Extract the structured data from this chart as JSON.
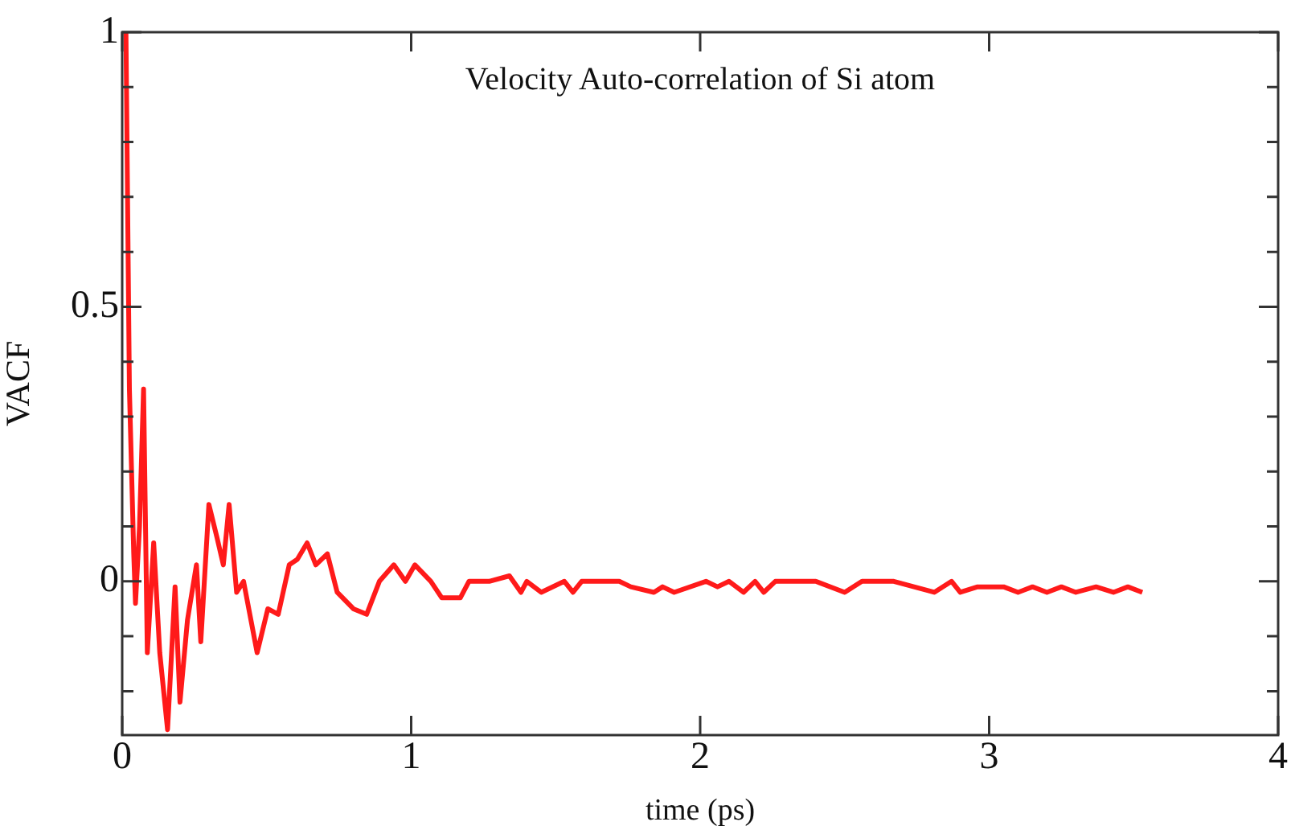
{
  "chart_data": {
    "type": "line",
    "title": "Velocity Auto-correlation of Si atom",
    "xlabel": "time (ps)",
    "ylabel": "VACF",
    "x": [
      0.005,
      0.013,
      0.025,
      0.04,
      0.046,
      0.06,
      0.074,
      0.087,
      0.109,
      0.13,
      0.157,
      0.183,
      0.2,
      0.226,
      0.257,
      0.272,
      0.3,
      0.328,
      0.35,
      0.37,
      0.396,
      0.42,
      0.467,
      0.504,
      0.54,
      0.578,
      0.606,
      0.64,
      0.67,
      0.71,
      0.744,
      0.8,
      0.846,
      0.89,
      0.94,
      0.98,
      1.013,
      1.068,
      1.106,
      1.17,
      1.2,
      1.27,
      1.34,
      1.38,
      1.4,
      1.45,
      1.53,
      1.56,
      1.59,
      1.65,
      1.72,
      1.76,
      1.84,
      1.87,
      1.91,
      2.02,
      2.06,
      2.1,
      2.15,
      2.19,
      2.22,
      2.26,
      2.35,
      2.4,
      2.5,
      2.56,
      2.67,
      2.74,
      2.81,
      2.87,
      2.9,
      2.96,
      3.05,
      3.1,
      3.15,
      3.2,
      3.25,
      3.3,
      3.37,
      3.43,
      3.48,
      3.53
    ],
    "series": [
      {
        "color": "#ff1a1a",
        "values": [
          1.0,
          1.0,
          0.35,
          0.05,
          -0.04,
          0.1,
          0.35,
          -0.13,
          0.07,
          -0.13,
          -0.27,
          -0.01,
          -0.22,
          -0.07,
          0.03,
          -0.11,
          0.14,
          0.08,
          0.03,
          0.14,
          -0.02,
          0.0,
          -0.13,
          -0.05,
          -0.06,
          0.03,
          0.04,
          0.07,
          0.03,
          0.05,
          -0.02,
          -0.05,
          -0.06,
          0.0,
          0.03,
          0.0,
          0.03,
          0.0,
          -0.03,
          -0.03,
          0.0,
          0.0,
          0.01,
          -0.02,
          0.0,
          -0.02,
          0.0,
          -0.02,
          0.0,
          0.0,
          0.0,
          -0.01,
          -0.02,
          -0.01,
          -0.02,
          0.0,
          -0.01,
          0.0,
          -0.02,
          0.0,
          -0.02,
          0.0,
          0.0,
          0.0,
          -0.02,
          0.0,
          0.0,
          -0.01,
          -0.02,
          0.0,
          -0.02,
          -0.01,
          -0.01,
          -0.02,
          -0.01,
          -0.02,
          -0.01,
          -0.02,
          -0.01,
          -0.02,
          -0.01,
          -0.02
        ]
      }
    ],
    "xlim": [
      0,
      4
    ],
    "xticks": [
      0,
      1,
      2,
      3,
      4
    ],
    "ylim": [
      -0.28,
      1
    ],
    "yticks": [
      {
        "value": -0.2,
        "label": null
      },
      {
        "value": -0.1,
        "label": null
      },
      0,
      {
        "value": 0.1,
        "label": null
      },
      {
        "value": 0.2,
        "label": null
      },
      {
        "value": 0.3,
        "label": null
      },
      {
        "value": 0.4,
        "label": null
      },
      0.5,
      {
        "value": 0.6,
        "label": null
      },
      {
        "value": 0.7,
        "label": null
      },
      {
        "value": 0.8,
        "label": null
      },
      {
        "value": 0.9,
        "label": null
      },
      1
    ],
    "grid": false,
    "legend": false,
    "marker": "none",
    "line_style": "solid"
  }
}
